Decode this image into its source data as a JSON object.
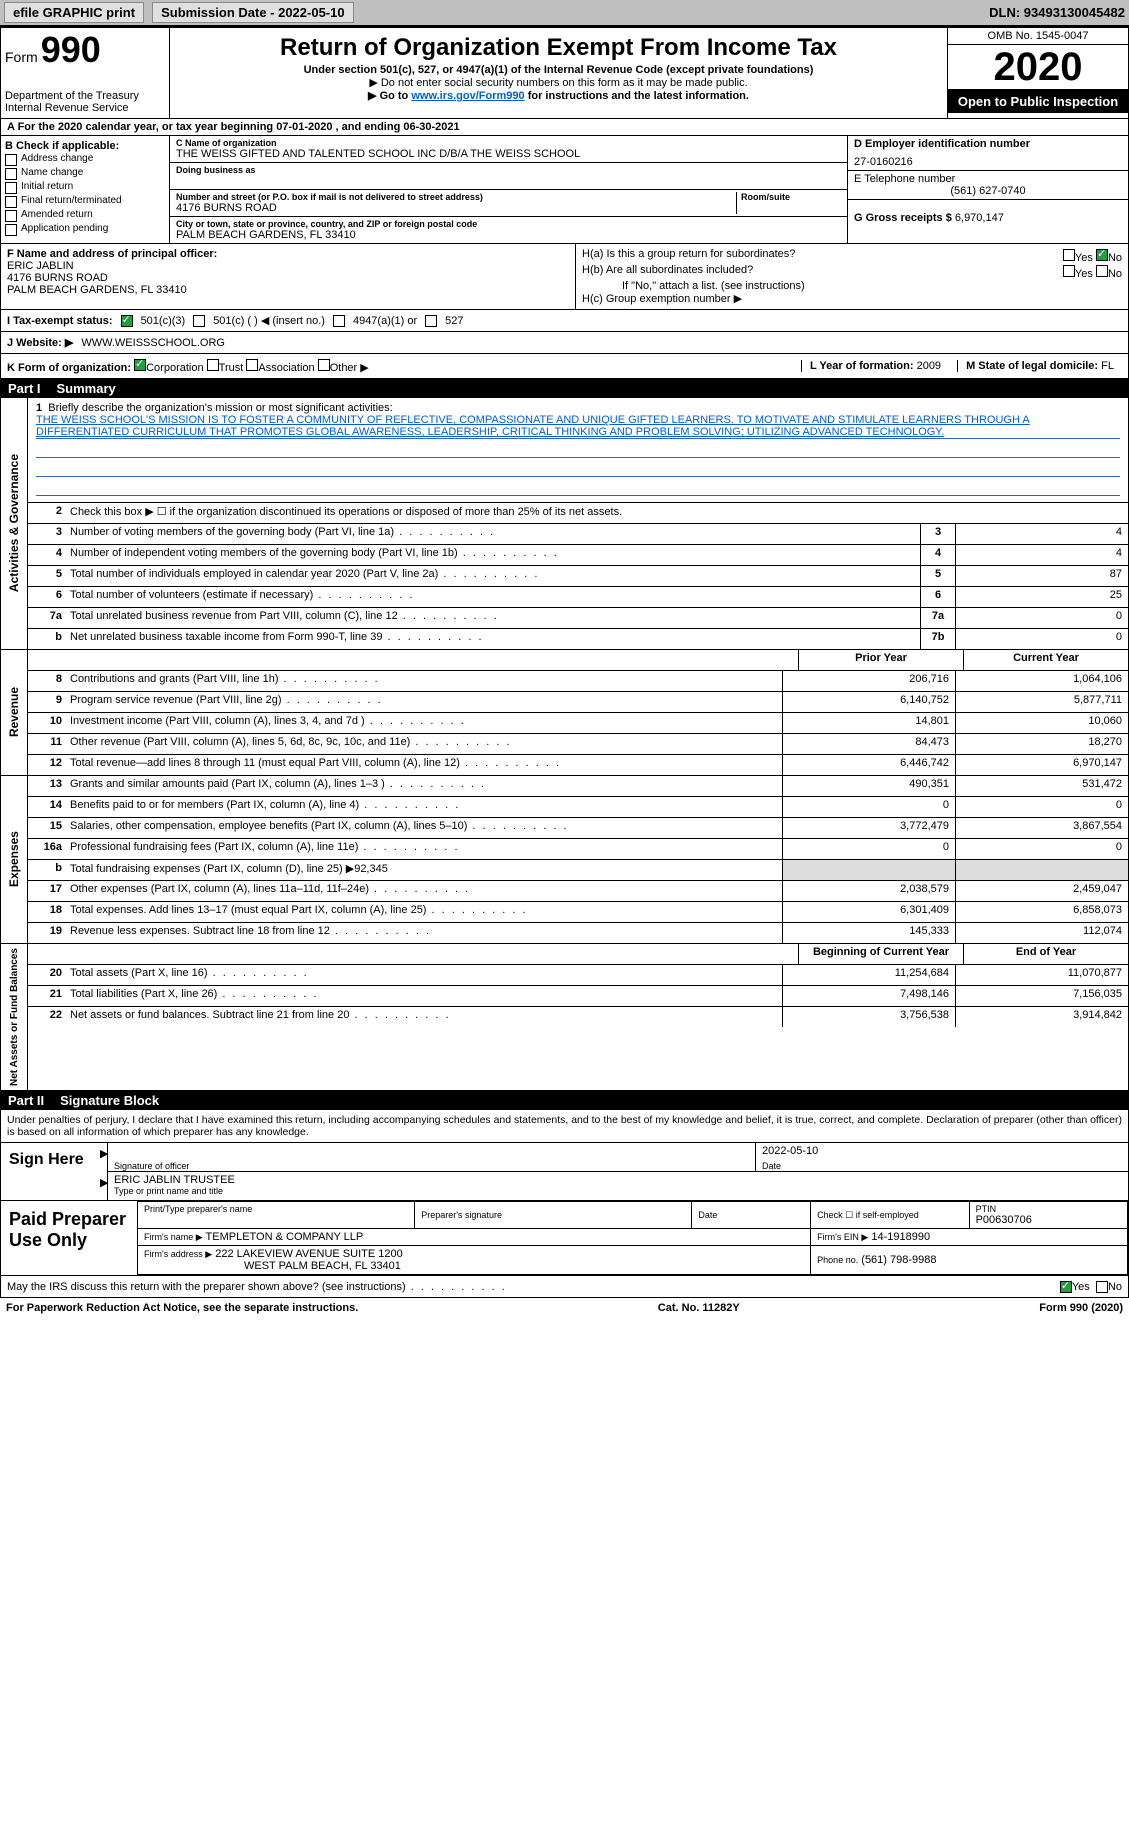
{
  "topbar": {
    "efile": "efile GRAPHIC print",
    "submission_label": "Submission Date - 2022-05-10",
    "dln": "DLN: 93493130045482"
  },
  "header": {
    "form_word": "Form",
    "form_number": "990",
    "dept": "Department of the Treasury",
    "irs": "Internal Revenue Service",
    "title": "Return of Organization Exempt From Income Tax",
    "sub1": "Under section 501(c), 527, or 4947(a)(1) of the Internal Revenue Code (except private foundations)",
    "sub2": "▶ Do not enter social security numbers on this form as it may be made public.",
    "sub3_pre": "▶ Go to ",
    "sub3_link": "www.irs.gov/Form990",
    "sub3_post": " for instructions and the latest information.",
    "omb": "OMB No. 1545-0047",
    "year": "2020",
    "inspection": "Open to Public Inspection"
  },
  "sectionA": {
    "text": "A For the 2020 calendar year, or tax year beginning 07-01-2020   , and ending 06-30-2021"
  },
  "sectionB": {
    "label": "B Check if applicable:",
    "opts": [
      "Address change",
      "Name change",
      "Initial return",
      "Final return/terminated",
      "Amended return",
      "Application pending"
    ]
  },
  "sectionC": {
    "name_label": "C Name of organization",
    "org_name": "THE WEISS GIFTED AND TALENTED SCHOOL INC D/B/A THE WEISS SCHOOL",
    "dba_label": "Doing business as",
    "addr_label": "Number and street (or P.O. box if mail is not delivered to street address)",
    "room_label": "Room/suite",
    "addr": "4176 BURNS ROAD",
    "city_label": "City or town, state or province, country, and ZIP or foreign postal code",
    "city": "PALM BEACH GARDENS, FL  33410"
  },
  "sectionD": {
    "label": "D Employer identification number",
    "ein": "27-0160216"
  },
  "sectionE": {
    "label": "E Telephone number",
    "phone": "(561) 627-0740"
  },
  "sectionG": {
    "label": "G Gross receipts $",
    "val": "6,970,147"
  },
  "sectionF": {
    "label": "F Name and address of principal officer:",
    "name": "ERIC JABLIN",
    "addr": "4176 BURNS ROAD",
    "city": "PALM BEACH GARDENS, FL  33410"
  },
  "sectionH": {
    "ha": "H(a)  Is this a group return for subordinates?",
    "hb": "H(b)  Are all subordinates included?",
    "hb_note": "If \"No,\" attach a list. (see instructions)",
    "hc": "H(c)  Group exemption number ▶",
    "yes": "Yes",
    "no": "No"
  },
  "taxexempt": {
    "label": "I   Tax-exempt status:",
    "c3": "501(c)(3)",
    "c": "501(c) (   ) ◀ (insert no.)",
    "a4947": "4947(a)(1) or",
    "s527": "527"
  },
  "website": {
    "label": "J   Website: ▶",
    "url": "WWW.WEISSSCHOOL.ORG"
  },
  "korg": {
    "label": "K Form of organization:",
    "corp": "Corporation",
    "trust": "Trust",
    "assoc": "Association",
    "other": "Other ▶"
  },
  "sectionL": {
    "label": "L Year of formation:",
    "val": "2009"
  },
  "sectionM": {
    "label": "M State of legal domicile:",
    "val": "FL"
  },
  "part1": {
    "label": "Part I",
    "title": "Summary"
  },
  "mission": {
    "num": "1",
    "label": "Briefly describe the organization's mission or most significant activities:",
    "text": "THE WEISS SCHOOL'S MISSION IS TO FOSTER A COMMUNITY OF REFLECTIVE, COMPASSIONATE AND UNIQUE GIFTED LEARNERS. TO MOTIVATE AND STIMULATE LEARNERS THROUGH A DIFFERENTIATED CURRICULUM THAT PROMOTES GLOBAL AWARENESS, LEADERSHIP, CRITICAL THINKING AND PROBLEM SOLVING; UTILIZING ADVANCED TECHNOLOGY."
  },
  "governance": {
    "side": "Activities & Governance",
    "rows": [
      {
        "n": "2",
        "d": "Check this box ▶ ☐ if the organization discontinued its operations or disposed of more than 25% of its net assets.",
        "box": "",
        "v": ""
      },
      {
        "n": "3",
        "d": "Number of voting members of the governing body (Part VI, line 1a)",
        "box": "3",
        "v": "4"
      },
      {
        "n": "4",
        "d": "Number of independent voting members of the governing body (Part VI, line 1b)",
        "box": "4",
        "v": "4"
      },
      {
        "n": "5",
        "d": "Total number of individuals employed in calendar year 2020 (Part V, line 2a)",
        "box": "5",
        "v": "87"
      },
      {
        "n": "6",
        "d": "Total number of volunteers (estimate if necessary)",
        "box": "6",
        "v": "25"
      },
      {
        "n": "7a",
        "d": "Total unrelated business revenue from Part VIII, column (C), line 12",
        "box": "7a",
        "v": "0"
      },
      {
        "n": "b",
        "d": "Net unrelated business taxable income from Form 990-T, line 39",
        "box": "7b",
        "v": "0"
      }
    ]
  },
  "cols": {
    "prior": "Prior Year",
    "current": "Current Year",
    "begin": "Beginning of Current Year",
    "end": "End of Year"
  },
  "revenue": {
    "side": "Revenue",
    "rows": [
      {
        "n": "8",
        "d": "Contributions and grants (Part VIII, line 1h)",
        "p": "206,716",
        "c": "1,064,106"
      },
      {
        "n": "9",
        "d": "Program service revenue (Part VIII, line 2g)",
        "p": "6,140,752",
        "c": "5,877,711"
      },
      {
        "n": "10",
        "d": "Investment income (Part VIII, column (A), lines 3, 4, and 7d )",
        "p": "14,801",
        "c": "10,060"
      },
      {
        "n": "11",
        "d": "Other revenue (Part VIII, column (A), lines 5, 6d, 8c, 9c, 10c, and 11e)",
        "p": "84,473",
        "c": "18,270"
      },
      {
        "n": "12",
        "d": "Total revenue—add lines 8 through 11 (must equal Part VIII, column (A), line 12)",
        "p": "6,446,742",
        "c": "6,970,147"
      }
    ]
  },
  "expenses": {
    "side": "Expenses",
    "rows": [
      {
        "n": "13",
        "d": "Grants and similar amounts paid (Part IX, column (A), lines 1–3 )",
        "p": "490,351",
        "c": "531,472"
      },
      {
        "n": "14",
        "d": "Benefits paid to or for members (Part IX, column (A), line 4)",
        "p": "0",
        "c": "0"
      },
      {
        "n": "15",
        "d": "Salaries, other compensation, employee benefits (Part IX, column (A), lines 5–10)",
        "p": "3,772,479",
        "c": "3,867,554"
      },
      {
        "n": "16a",
        "d": "Professional fundraising fees (Part IX, column (A), line 11e)",
        "p": "0",
        "c": "0"
      },
      {
        "n": "b",
        "d": "Total fundraising expenses (Part IX, column (D), line 25) ▶92,345",
        "p": "",
        "c": ""
      },
      {
        "n": "17",
        "d": "Other expenses (Part IX, column (A), lines 11a–11d, 11f–24e)",
        "p": "2,038,579",
        "c": "2,459,047"
      },
      {
        "n": "18",
        "d": "Total expenses. Add lines 13–17 (must equal Part IX, column (A), line 25)",
        "p": "6,301,409",
        "c": "6,858,073"
      },
      {
        "n": "19",
        "d": "Revenue less expenses. Subtract line 18 from line 12",
        "p": "145,333",
        "c": "112,074"
      }
    ]
  },
  "netassets": {
    "side": "Net Assets or Fund Balances",
    "rows": [
      {
        "n": "20",
        "d": "Total assets (Part X, line 16)",
        "p": "11,254,684",
        "c": "11,070,877"
      },
      {
        "n": "21",
        "d": "Total liabilities (Part X, line 26)",
        "p": "7,498,146",
        "c": "7,156,035"
      },
      {
        "n": "22",
        "d": "Net assets or fund balances. Subtract line 21 from line 20",
        "p": "3,756,538",
        "c": "3,914,842"
      }
    ]
  },
  "part2": {
    "label": "Part II",
    "title": "Signature Block"
  },
  "sig": {
    "penalty": "Under penalties of perjury, I declare that I have examined this return, including accompanying schedules and statements, and to the best of my knowledge and belief, it is true, correct, and complete. Declaration of preparer (other than officer) is based on all information of which preparer has any knowledge.",
    "sign_here": "Sign Here",
    "sig_officer": "Signature of officer",
    "date": "Date",
    "sig_date": "2022-05-10",
    "name_line": "ERIC JABLIN  TRUSTEE",
    "name_label": "Type or print name and title"
  },
  "prep": {
    "label": "Paid Preparer Use Only",
    "print_name": "Print/Type preparer's name",
    "prep_sig": "Preparer's signature",
    "date": "Date",
    "check_self": "Check ☐ if self-employed",
    "ptin_label": "PTIN",
    "ptin": "P00630706",
    "firm_name_label": "Firm's name    ▶",
    "firm_name": "TEMPLETON & COMPANY LLP",
    "firm_ein_label": "Firm's EIN ▶",
    "firm_ein": "14-1918990",
    "firm_addr_label": "Firm's address ▶",
    "firm_addr": "222 LAKEVIEW AVENUE SUITE 1200",
    "firm_city": "WEST PALM BEACH, FL  33401",
    "phone_label": "Phone no.",
    "phone": "(561) 798-9988"
  },
  "discuss": {
    "text": "May the IRS discuss this return with the preparer shown above? (see instructions)",
    "yes": "Yes",
    "no": "No"
  },
  "footer": {
    "left": "For Paperwork Reduction Act Notice, see the separate instructions.",
    "mid": "Cat. No. 11282Y",
    "right": "Form 990 (2020)"
  },
  "colors": {
    "bg": "#ffffff",
    "topbar": "#c0c0c0",
    "black": "#000000",
    "link": "#0060d0",
    "check_green": "#20a040"
  }
}
